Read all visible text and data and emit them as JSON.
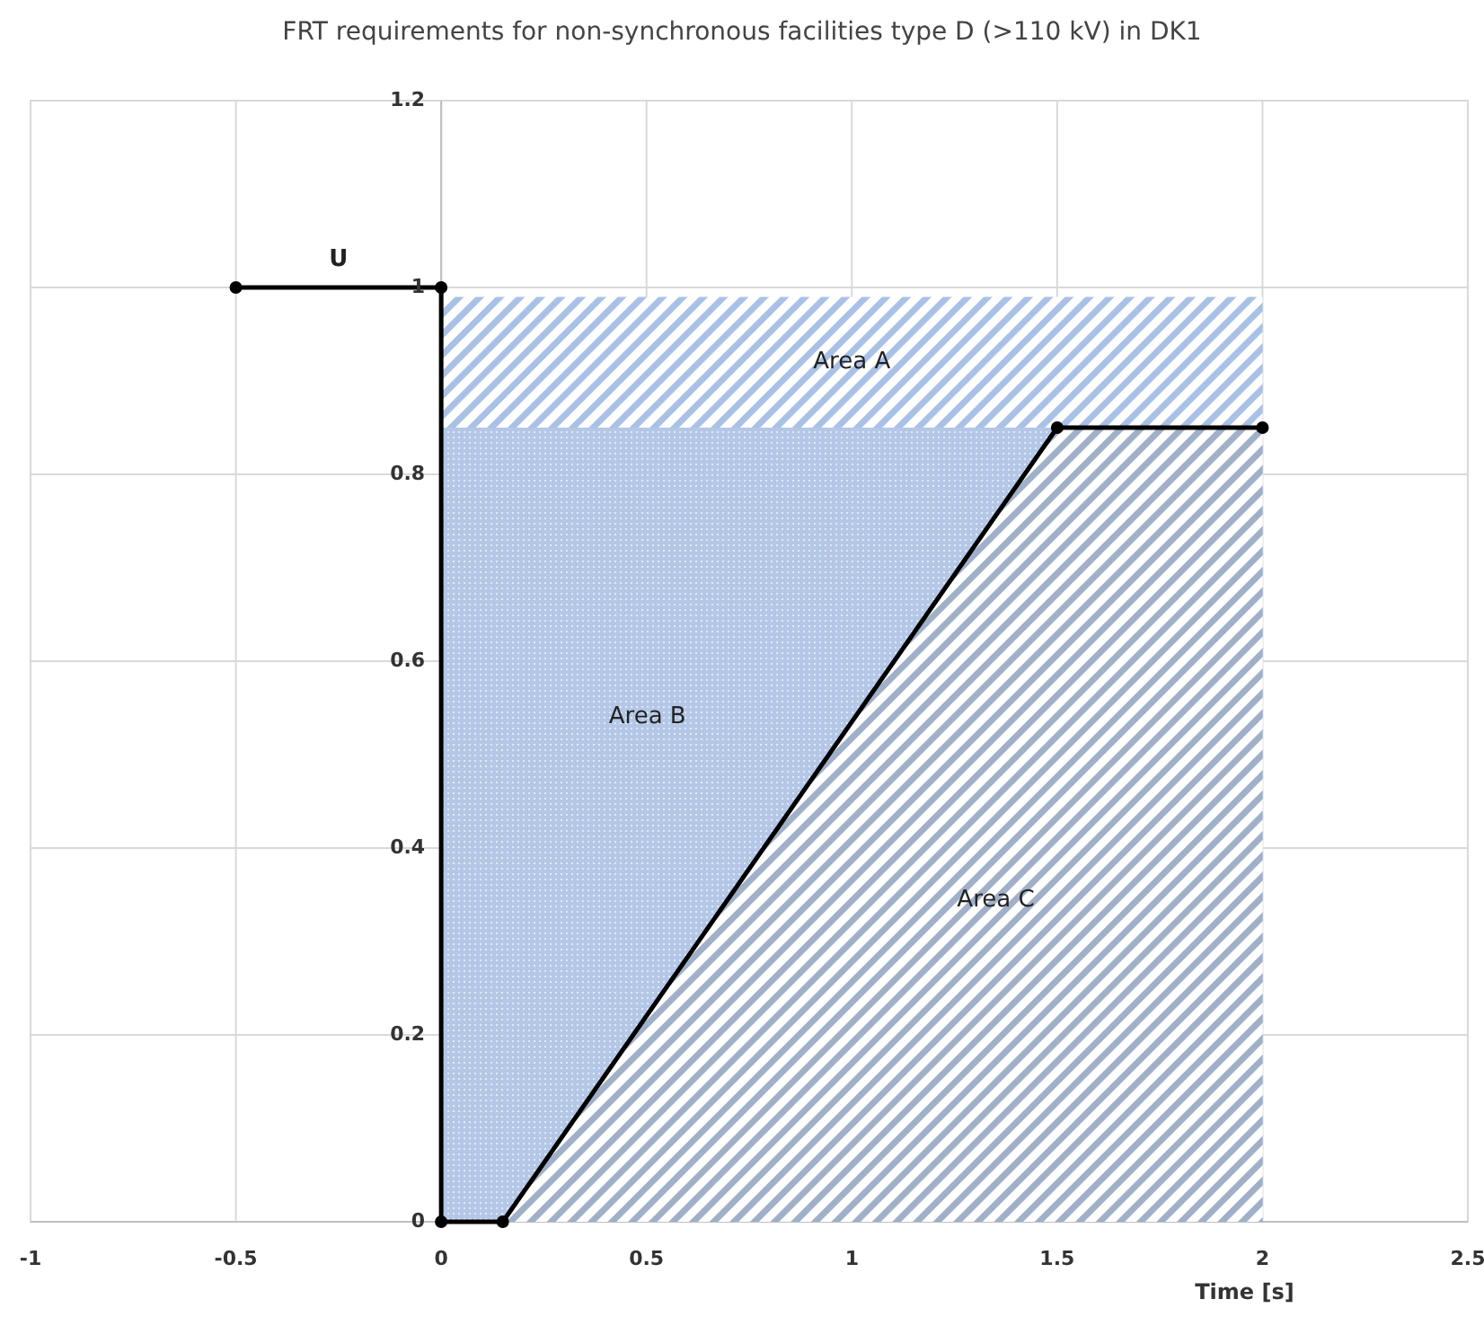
{
  "chart_data": {
    "type": "area",
    "title": "FRT requirements for non-synchronous facilities type D (>110 kV) in DK1",
    "xlabel": "Time [s]",
    "xlim": [
      -1,
      2.5
    ],
    "xticks": [
      -1,
      -0.5,
      0,
      0.5,
      1,
      1.5,
      2,
      2.5
    ],
    "ylim": [
      0,
      1.2
    ],
    "yticks": [
      0,
      0.2,
      0.4,
      0.6,
      0.8,
      1,
      1.2
    ],
    "grid": true,
    "series": [
      {
        "name": "Area A",
        "color": "#a9c1e6",
        "x": [
          0,
          2
        ],
        "values": [
          0.99,
          0.99
        ]
      },
      {
        "name": "Area B",
        "color": "#b4c7e7",
        "x": [
          0,
          1.5
        ],
        "values": [
          0.85,
          0.85
        ]
      },
      {
        "name": "Area C",
        "color": "#9fb0c8",
        "x": [
          0.15,
          1.5,
          2
        ],
        "values": [
          0,
          0.85,
          0.85
        ]
      },
      {
        "name": "U",
        "type": "line",
        "color": "#000000",
        "marker": "circle",
        "x": [
          -0.5,
          0,
          0,
          0.15,
          1.5,
          2
        ],
        "values": [
          1,
          1,
          0,
          0,
          0.85,
          0.85
        ]
      }
    ]
  }
}
